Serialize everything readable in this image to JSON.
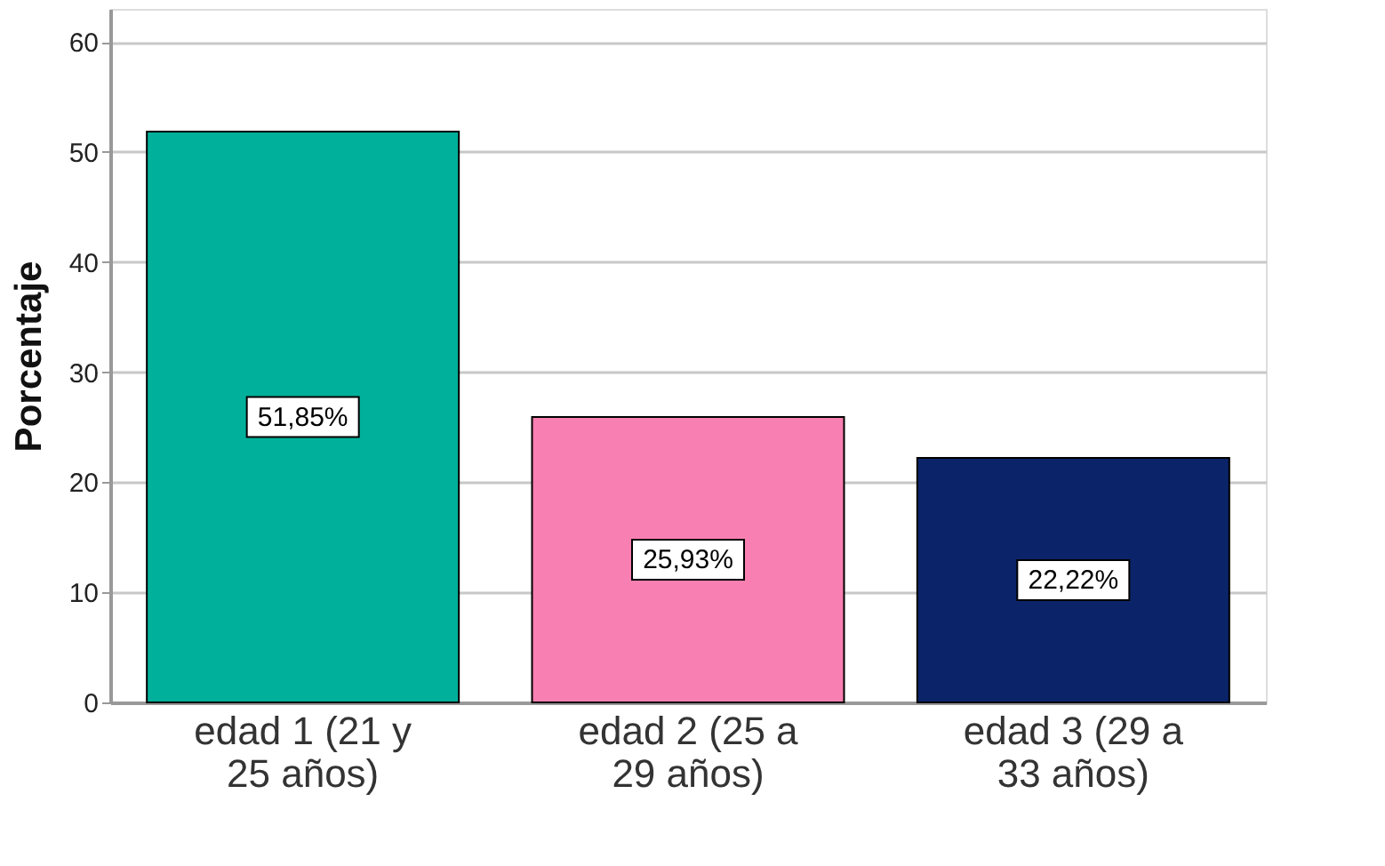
{
  "chart_data": {
    "type": "bar",
    "ylabel": "Porcentaje",
    "categories": [
      "edad 1 (21 y\n25 años)",
      "edad 2 (25 a\n29 años)",
      "edad 3 (29 a\n33 años)"
    ],
    "values": [
      51.85,
      25.93,
      22.22
    ],
    "colors": [
      "#00b09b",
      "#f87fb1",
      "#0b2469"
    ],
    "value_labels": [
      "51,85%",
      "25,93%",
      "22,22%"
    ],
    "ylim": [
      0,
      63
    ],
    "yticks": [
      0,
      10,
      20,
      30,
      40,
      50,
      60
    ],
    "grid": "y"
  }
}
